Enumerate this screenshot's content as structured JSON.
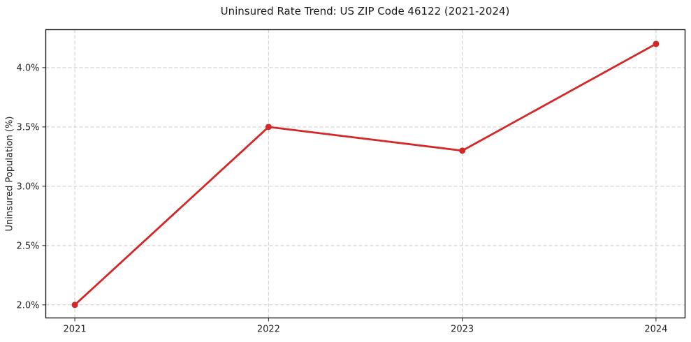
{
  "chart_data": {
    "type": "line",
    "title": "Uninsured Rate Trend: US ZIP Code 46122 (2021-2024)",
    "xlabel": "",
    "ylabel": "Uninsured Population (%)",
    "x": [
      2021,
      2022,
      2023,
      2024
    ],
    "values": [
      2.0,
      3.5,
      3.3,
      4.2
    ],
    "xticks": [
      {
        "value": 2021,
        "label": "2021"
      },
      {
        "value": 2022,
        "label": "2022"
      },
      {
        "value": 2023,
        "label": "2023"
      },
      {
        "value": 2024,
        "label": "2024"
      }
    ],
    "yticks": [
      {
        "value": 2.0,
        "label": "2.0%"
      },
      {
        "value": 2.5,
        "label": "2.5%"
      },
      {
        "value": 3.0,
        "label": "3.0%"
      },
      {
        "value": 3.5,
        "label": "3.5%"
      },
      {
        "value": 4.0,
        "label": "4.0%"
      }
    ],
    "xlim": [
      2020.85,
      2024.15
    ],
    "ylim": [
      1.89,
      4.32
    ],
    "line_color": "#d62728",
    "marker": "circle",
    "marker_radius": 4.5,
    "grid": "dashed",
    "legend": "none"
  }
}
